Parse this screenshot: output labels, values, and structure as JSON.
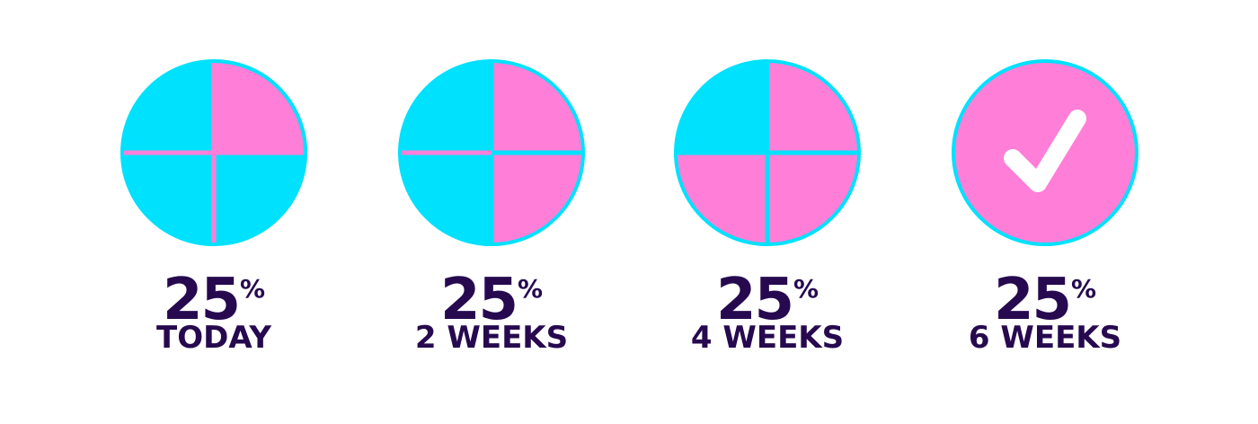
{
  "colors": {
    "cyan": "#00e1fd",
    "pink": "#ff7ed8",
    "text": "#26094f",
    "check": "#ffffff"
  },
  "milestones": [
    {
      "percent": "25",
      "percent_sign": "%",
      "label": "TODAY",
      "filled_quarters": 1,
      "icon": "pie-quarters"
    },
    {
      "percent": "25",
      "percent_sign": "%",
      "label": "2 WEEKS",
      "filled_quarters": 2,
      "icon": "pie-quarters"
    },
    {
      "percent": "25",
      "percent_sign": "%",
      "label": "4 WEEKS",
      "filled_quarters": 3,
      "icon": "pie-quarters"
    },
    {
      "percent": "25",
      "percent_sign": "%",
      "label": "6 WEEKS",
      "filled_quarters": 4,
      "icon": "checkmark-icon"
    }
  ]
}
